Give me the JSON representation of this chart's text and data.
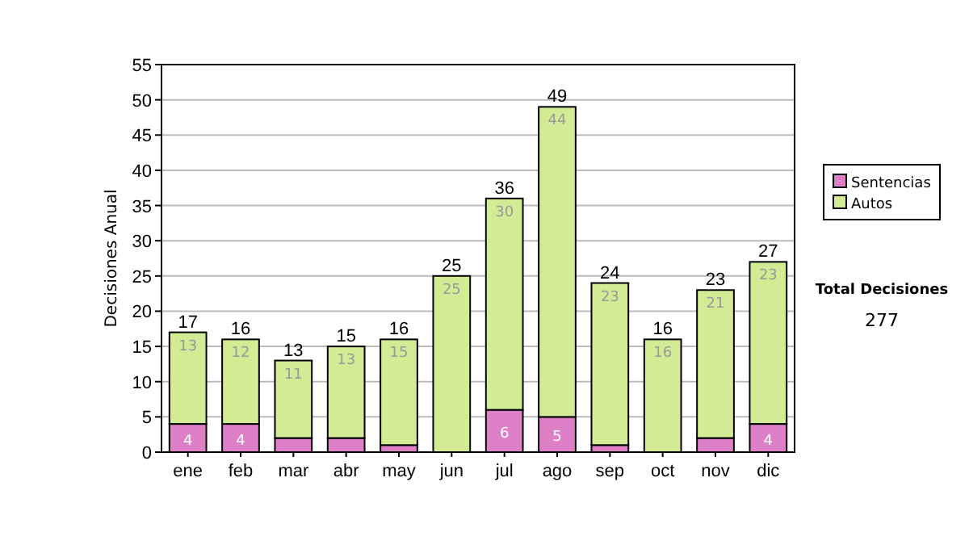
{
  "chart_data": {
    "type": "bar",
    "stacked": true,
    "ylabel": "Decisiones Anual",
    "categories": [
      "ene",
      "feb",
      "mar",
      "abr",
      "may",
      "jun",
      "jul",
      "ago",
      "sep",
      "oct",
      "nov",
      "dic"
    ],
    "series": [
      {
        "name": "Sentencias",
        "color": "#dd80c8",
        "values": [
          4,
          4,
          2,
          2,
          1,
          0,
          6,
          5,
          1,
          0,
          2,
          4
        ],
        "value_labels": [
          "4",
          "4",
          null,
          null,
          null,
          null,
          "6",
          "5",
          null,
          null,
          null,
          "4"
        ]
      },
      {
        "name": "Autos",
        "color": "#d4eb96",
        "values": [
          13,
          12,
          11,
          13,
          15,
          25,
          30,
          44,
          23,
          16,
          21,
          23
        ],
        "value_labels": [
          "13",
          "12",
          "11",
          "13",
          "15",
          "25",
          "30",
          "44",
          "23",
          "16",
          "21",
          "23"
        ]
      }
    ],
    "totals": [
      "17",
      "16",
      "13",
      "15",
      "16",
      "25",
      "36",
      "49",
      "24",
      "16",
      "23",
      "27"
    ],
    "ylim": [
      0,
      55
    ],
    "yticks": [
      0,
      5,
      10,
      15,
      20,
      25,
      30,
      35,
      40,
      45,
      50,
      55
    ],
    "grid": "y",
    "legend": "right",
    "annotations": [
      "Total Decisiones",
      "277"
    ]
  }
}
